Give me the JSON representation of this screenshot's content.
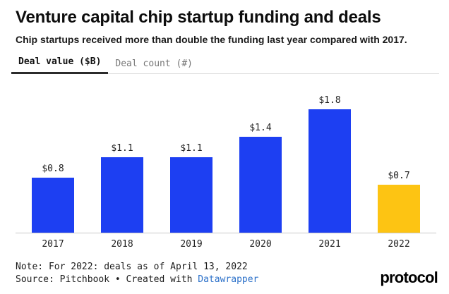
{
  "header": {
    "title": "Venture capital chip startup funding and deals",
    "subtitle": "Chip startups received more than double the funding last year compared with 2017."
  },
  "tabs": [
    {
      "label": "Deal value ($B)",
      "active": true
    },
    {
      "label": "Deal count (#)",
      "active": false
    }
  ],
  "chart_data": {
    "type": "bar",
    "categories": [
      "2017",
      "2018",
      "2019",
      "2020",
      "2021",
      "2022"
    ],
    "values": [
      0.8,
      1.1,
      1.1,
      1.4,
      1.8,
      0.7
    ],
    "value_labels": [
      "$0.8",
      "$1.1",
      "$1.1",
      "$1.4",
      "$1.8",
      "$0.7"
    ],
    "bar_colors": [
      "#1d3ff2",
      "#1d3ff2",
      "#1d3ff2",
      "#1d3ff2",
      "#1d3ff2",
      "#fdc413"
    ],
    "title": "Venture capital chip startup funding and deals",
    "xlabel": "",
    "ylabel": "Deal value ($B)",
    "ylim": [
      0,
      2.0
    ],
    "grid": false,
    "legend": false
  },
  "footer": {
    "note": "Note: For 2022: deals as of April 13, 2022",
    "source_text": "Source: Pitchbook • Created with ",
    "source_link_label": "Datawrapper",
    "logo": "protocol"
  },
  "colors": {
    "bar_default": "#1d3ff2",
    "bar_highlight": "#fdc413",
    "link": "#2b70c9",
    "axis_line": "#c9c9c9"
  }
}
